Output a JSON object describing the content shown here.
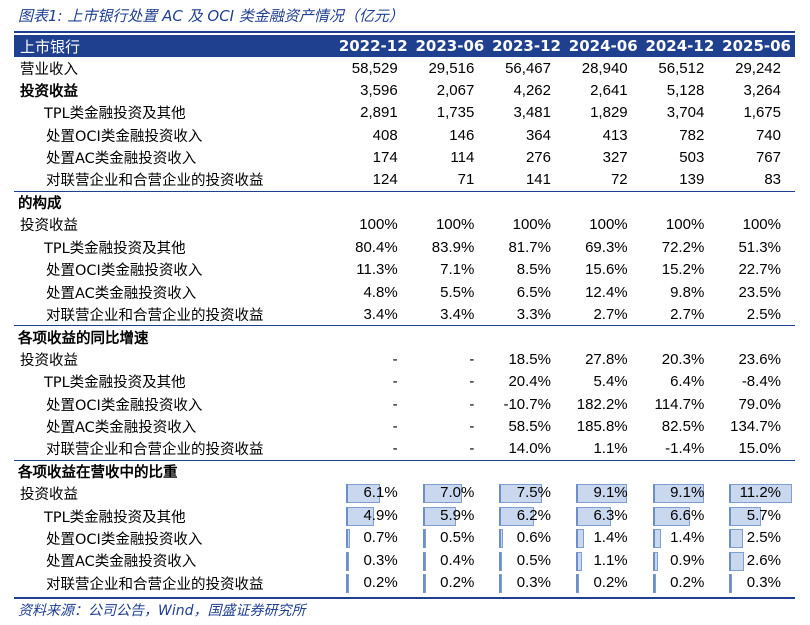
{
  "title": "图表1:  上市银行处置 AC 及 OCI 类金融资产情况（亿元）",
  "source": "资料来源：公司公告，Wind，国盛证券研究所",
  "header": {
    "label": "上市银行",
    "periods": [
      "2022-12",
      "2023-06",
      "2023-12",
      "2024-06",
      "2024-12",
      "2025-06"
    ]
  },
  "sections": [
    {
      "title": "",
      "rows": [
        {
          "label": "营业收入",
          "indent": 0,
          "bold": false,
          "values": [
            "58,529",
            "29,516",
            "56,467",
            "28,940",
            "56,512",
            "29,242"
          ]
        },
        {
          "label": "投资收益",
          "indent": 0,
          "bold": true,
          "values": [
            "3,596",
            "2,067",
            "4,262",
            "2,641",
            "5,128",
            "3,264"
          ]
        },
        {
          "label": "TPL类金融投资及其他",
          "indent": 1,
          "bold": false,
          "values": [
            "2,891",
            "1,735",
            "3,481",
            "1,829",
            "3,704",
            "1,675"
          ]
        },
        {
          "label": "处置OCI类金融投资收入",
          "indent": 2,
          "bold": false,
          "values": [
            "408",
            "146",
            "364",
            "413",
            "782",
            "740"
          ]
        },
        {
          "label": "处置AC类金融投资收入",
          "indent": 2,
          "bold": false,
          "values": [
            "174",
            "114",
            "276",
            "327",
            "503",
            "767"
          ]
        },
        {
          "label": "对联营企业和合营企业的投资收益",
          "indent": 2,
          "bold": false,
          "values": [
            "124",
            "71",
            "141",
            "72",
            "139",
            "83"
          ]
        }
      ]
    },
    {
      "title": "的构成",
      "rows": [
        {
          "label": "投资收益",
          "indent": 0,
          "bold": false,
          "values": [
            "100%",
            "100%",
            "100%",
            "100%",
            "100%",
            "100%"
          ]
        },
        {
          "label": "TPL类金融投资及其他",
          "indent": 1,
          "bold": false,
          "values": [
            "80.4%",
            "83.9%",
            "81.7%",
            "69.3%",
            "72.2%",
            "51.3%"
          ]
        },
        {
          "label": "处置OCI类金融投资收入",
          "indent": 2,
          "bold": false,
          "values": [
            "11.3%",
            "7.1%",
            "8.5%",
            "15.6%",
            "15.2%",
            "22.7%"
          ]
        },
        {
          "label": "处置AC类金融投资收入",
          "indent": 2,
          "bold": false,
          "values": [
            "4.8%",
            "5.5%",
            "6.5%",
            "12.4%",
            "9.8%",
            "23.5%"
          ]
        },
        {
          "label": "对联营企业和合营企业的投资收益",
          "indent": 2,
          "bold": false,
          "values": [
            "3.4%",
            "3.4%",
            "3.3%",
            "2.7%",
            "2.7%",
            "2.5%"
          ]
        }
      ]
    },
    {
      "title": "各项收益的同比增速",
      "rows": [
        {
          "label": "投资收益",
          "indent": 0,
          "bold": false,
          "values": [
            "-",
            "-",
            "18.5%",
            "27.8%",
            "20.3%",
            "23.6%"
          ]
        },
        {
          "label": "TPL类金融投资及其他",
          "indent": 1,
          "bold": false,
          "values": [
            "-",
            "-",
            "20.4%",
            "5.4%",
            "6.4%",
            "-8.4%"
          ]
        },
        {
          "label": "处置OCI类金融投资收入",
          "indent": 2,
          "bold": false,
          "values": [
            "-",
            "-",
            "-10.7%",
            "182.2%",
            "114.7%",
            "79.0%"
          ]
        },
        {
          "label": "处置AC类金融投资收入",
          "indent": 2,
          "bold": false,
          "values": [
            "-",
            "-",
            "58.5%",
            "185.8%",
            "82.5%",
            "134.7%"
          ]
        },
        {
          "label": "对联营企业和合营企业的投资收益",
          "indent": 2,
          "bold": false,
          "values": [
            "-",
            "-",
            "14.0%",
            "1.1%",
            "-1.4%",
            "15.0%"
          ]
        }
      ]
    },
    {
      "title": "各项收益在营收中的比重",
      "bars": true,
      "bar_max_percent": 11.2,
      "rows": [
        {
          "label": "投资收益",
          "indent": 0,
          "bold": false,
          "values": [
            "6.1%",
            "7.0%",
            "7.5%",
            "9.1%",
            "9.1%",
            "11.2%"
          ],
          "levels": [
            6.1,
            7.0,
            7.5,
            9.1,
            9.1,
            11.2
          ]
        },
        {
          "label": "TPL类金融投资及其他",
          "indent": 1,
          "bold": false,
          "values": [
            "4.9%",
            "5.9%",
            "6.2%",
            "6.3%",
            "6.6%",
            "5.7%"
          ],
          "levels": [
            4.9,
            5.9,
            6.2,
            6.3,
            6.6,
            5.7
          ]
        },
        {
          "label": "处置OCI类金融投资收入",
          "indent": 2,
          "bold": false,
          "values": [
            "0.7%",
            "0.5%",
            "0.6%",
            "1.4%",
            "1.4%",
            "2.5%"
          ],
          "levels": [
            0.7,
            0.5,
            0.6,
            1.4,
            1.4,
            2.5
          ]
        },
        {
          "label": "处置AC类金融投资收入",
          "indent": 2,
          "bold": false,
          "values": [
            "0.3%",
            "0.4%",
            "0.5%",
            "1.1%",
            "0.9%",
            "2.6%"
          ],
          "levels": [
            0.3,
            0.4,
            0.5,
            1.1,
            0.9,
            2.6
          ]
        },
        {
          "label": "对联营企业和合营企业的投资收益",
          "indent": 2,
          "bold": false,
          "values": [
            "0.2%",
            "0.2%",
            "0.3%",
            "0.2%",
            "0.2%",
            "0.3%"
          ],
          "levels": [
            0.2,
            0.2,
            0.3,
            0.2,
            0.2,
            0.3
          ]
        }
      ]
    }
  ],
  "colors": {
    "accent": "#1f3f8f",
    "bar_fill": "#c9d8ef",
    "bar_border": "#7f9fd1"
  }
}
